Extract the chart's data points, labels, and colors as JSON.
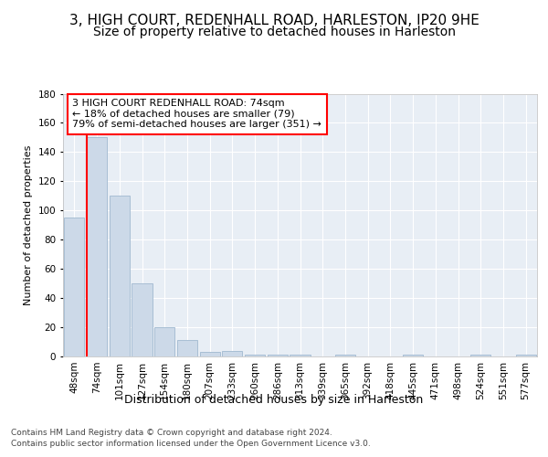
{
  "title1": "3, HIGH COURT, REDENHALL ROAD, HARLESTON, IP20 9HE",
  "title2": "Size of property relative to detached houses in Harleston",
  "xlabel": "Distribution of detached houses by size in Harleston",
  "ylabel": "Number of detached properties",
  "categories": [
    "48sqm",
    "74sqm",
    "101sqm",
    "127sqm",
    "154sqm",
    "180sqm",
    "207sqm",
    "233sqm",
    "260sqm",
    "286sqm",
    "313sqm",
    "339sqm",
    "365sqm",
    "392sqm",
    "418sqm",
    "445sqm",
    "471sqm",
    "498sqm",
    "524sqm",
    "551sqm",
    "577sqm"
  ],
  "bar_heights": [
    95,
    150,
    110,
    50,
    20,
    11,
    3,
    4,
    1,
    1,
    1,
    0,
    1,
    0,
    0,
    1,
    0,
    0,
    1,
    0,
    1
  ],
  "bar_color": "#ccd9e8",
  "bar_edge_color": "#a8bed4",
  "red_line_bar_index": 1,
  "annotation_lines": [
    "3 HIGH COURT REDENHALL ROAD: 74sqm",
    "← 18% of detached houses are smaller (79)",
    "79% of semi-detached houses are larger (351) →"
  ],
  "footer1": "Contains HM Land Registry data © Crown copyright and database right 2024.",
  "footer2": "Contains public sector information licensed under the Open Government Licence v3.0.",
  "ylim": [
    0,
    180
  ],
  "background_color": "#ffffff",
  "plot_background": "#e8eef5",
  "grid_color": "#ffffff",
  "title1_fontsize": 11,
  "title2_fontsize": 10,
  "xlabel_fontsize": 9,
  "ylabel_fontsize": 8,
  "tick_fontsize": 7.5,
  "footer_fontsize": 6.5
}
